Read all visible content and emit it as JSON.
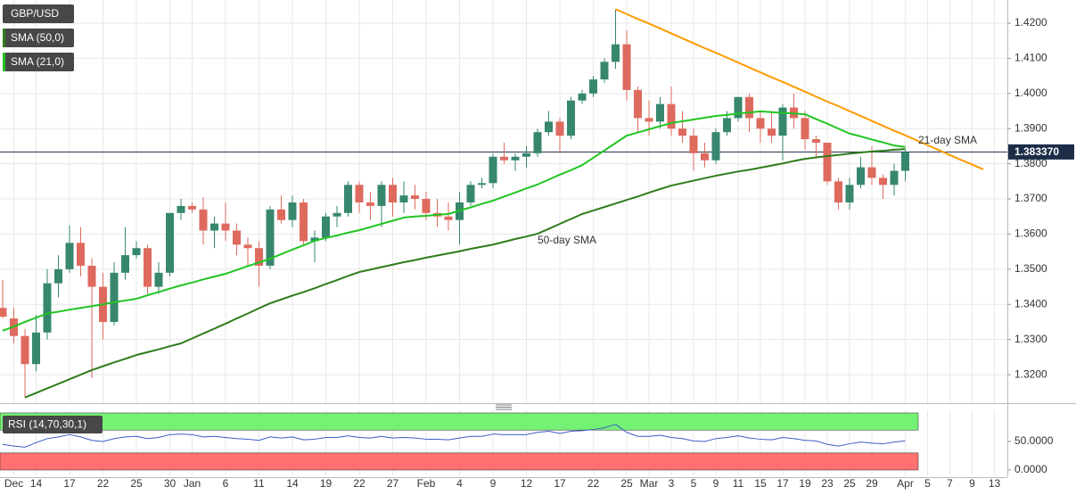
{
  "chart_data": [
    {
      "type": "candlestick",
      "categories": [
        null,
        "Dec",
        null,
        "14",
        null,
        null,
        "17",
        null,
        null,
        "22",
        null,
        null,
        "25",
        null,
        null,
        "30",
        null,
        "Jan",
        null,
        null,
        "6",
        null,
        null,
        "11",
        null,
        null,
        "14",
        null,
        null,
        "19",
        null,
        null,
        "22",
        null,
        null,
        "27",
        null,
        null,
        "Feb",
        null,
        null,
        "4",
        null,
        null,
        "9",
        null,
        null,
        "12",
        null,
        null,
        "17",
        null,
        null,
        "22",
        null,
        null,
        "25",
        null,
        "Mar",
        null,
        "3",
        null,
        "5",
        null,
        "9",
        null,
        "11",
        null,
        "15",
        null,
        "17",
        null,
        "19",
        null,
        "23",
        null,
        "25",
        null,
        "29",
        null,
        null,
        "Apr",
        null,
        "5",
        null,
        "7",
        null,
        "9",
        null,
        "13"
      ],
      "series": [
        {
          "name": "GBP/USD",
          "up_color": "#37876f",
          "down_color": "#de6a5e",
          "open": [
            1.339,
            1.336,
            1.331,
            1.323,
            1.332,
            1.346,
            1.35,
            1.3575,
            1.351,
            1.345,
            1.335,
            1.349,
            1.354,
            1.356,
            1.345,
            1.349,
            1.366,
            1.368,
            1.367,
            1.361,
            1.363,
            1.361,
            1.357,
            1.356,
            1.351,
            1.367,
            1.364,
            1.369,
            1.358,
            1.359,
            1.365,
            1.366,
            1.374,
            1.369,
            1.368,
            1.374,
            1.369,
            1.371,
            1.37,
            1.366,
            1.365,
            1.364,
            1.369,
            1.374,
            1.3745,
            1.382,
            1.381,
            1.382,
            1.383,
            1.389,
            1.392,
            1.388,
            1.398,
            1.4,
            1.404,
            1.409,
            1.414,
            1.401,
            1.393,
            1.392,
            1.397,
            1.39,
            1.388,
            1.383,
            1.381,
            1.389,
            1.393,
            1.399,
            1.393,
            1.39,
            1.388,
            1.396,
            1.393,
            1.387,
            1.386,
            1.375,
            1.369,
            1.374,
            1.379,
            1.376,
            1.374,
            1.378,
            null,
            null,
            null,
            null,
            null,
            null,
            null,
            null
          ],
          "high": [
            1.347,
            1.339,
            1.333,
            1.337,
            1.35,
            1.354,
            1.3625,
            1.362,
            1.353,
            1.349,
            1.352,
            1.362,
            1.358,
            1.357,
            1.352,
            1.366,
            1.37,
            1.369,
            1.3705,
            1.365,
            1.369,
            1.363,
            1.359,
            1.358,
            1.368,
            1.371,
            1.371,
            1.37,
            1.361,
            1.366,
            1.368,
            1.375,
            1.375,
            1.372,
            1.375,
            1.376,
            1.375,
            1.374,
            1.372,
            1.37,
            1.369,
            1.372,
            1.375,
            1.376,
            1.383,
            1.386,
            1.383,
            1.385,
            1.39,
            1.395,
            1.393,
            1.399,
            1.401,
            1.405,
            1.41,
            1.424,
            1.418,
            1.402,
            1.398,
            1.399,
            1.402,
            1.395,
            1.39,
            1.386,
            1.39,
            1.395,
            1.399,
            1.4,
            1.395,
            1.395,
            1.397,
            1.4,
            1.395,
            1.388,
            1.386,
            1.376,
            1.376,
            1.382,
            1.385,
            1.377,
            1.38,
            1.384,
            null,
            null,
            null,
            null,
            null,
            null,
            null,
            null
          ],
          "low": [
            1.336,
            1.329,
            1.3135,
            1.321,
            1.33,
            1.342,
            1.349,
            1.348,
            1.319,
            1.33,
            1.334,
            1.347,
            1.353,
            1.343,
            1.343,
            1.348,
            1.364,
            1.366,
            1.357,
            1.356,
            1.358,
            1.354,
            1.351,
            1.345,
            1.35,
            1.363,
            1.362,
            1.357,
            1.352,
            1.358,
            1.362,
            1.365,
            1.366,
            1.364,
            1.362,
            1.365,
            1.366,
            1.367,
            1.364,
            1.362,
            1.361,
            1.357,
            1.368,
            1.373,
            1.373,
            1.38,
            1.378,
            1.379,
            1.382,
            1.388,
            1.383,
            1.387,
            1.397,
            1.399,
            1.403,
            1.407,
            1.398,
            1.389,
            1.388,
            1.39,
            1.388,
            1.386,
            1.378,
            1.379,
            1.38,
            1.388,
            1.392,
            1.389,
            1.386,
            1.386,
            1.381,
            1.39,
            1.384,
            1.382,
            1.374,
            1.367,
            1.367,
            1.373,
            1.374,
            1.37,
            1.371,
            1.375,
            null,
            null,
            null,
            null,
            null,
            null,
            null,
            null
          ],
          "close": [
            1.3365,
            1.331,
            1.323,
            1.332,
            1.346,
            1.35,
            1.3575,
            1.351,
            1.345,
            1.335,
            1.349,
            1.354,
            1.356,
            1.345,
            1.349,
            1.366,
            1.368,
            1.367,
            1.361,
            1.363,
            1.361,
            1.357,
            1.356,
            1.351,
            1.367,
            1.364,
            1.369,
            1.358,
            1.359,
            1.365,
            1.366,
            1.374,
            1.369,
            1.368,
            1.374,
            1.369,
            1.371,
            1.37,
            1.366,
            1.365,
            1.364,
            1.369,
            1.374,
            1.3745,
            1.382,
            1.381,
            1.382,
            1.383,
            1.389,
            1.392,
            1.388,
            1.398,
            1.4,
            1.404,
            1.409,
            1.414,
            1.401,
            1.393,
            1.392,
            1.397,
            1.39,
            1.388,
            1.383,
            1.381,
            1.389,
            1.393,
            1.399,
            1.393,
            1.39,
            1.388,
            1.396,
            1.393,
            1.387,
            1.386,
            1.375,
            1.369,
            1.374,
            1.379,
            1.376,
            1.374,
            1.378,
            1.3833,
            null,
            null,
            null,
            null,
            null,
            null,
            null,
            null
          ]
        },
        {
          "name": "SMA (50,0)",
          "color": "#2f7d1c",
          "values": [
            null,
            null,
            1.3135,
            1.3148,
            1.3161,
            1.3174,
            1.3187,
            1.32,
            1.3213,
            1.3224,
            1.3235,
            1.3245,
            1.3256,
            1.3264,
            1.3272,
            1.3281,
            1.3289,
            1.3303,
            1.3317,
            1.3331,
            1.3345,
            1.336,
            1.3374,
            1.3389,
            1.3403,
            1.3414,
            1.3425,
            1.3435,
            1.3446,
            1.3458,
            1.3469,
            1.3481,
            1.3492,
            1.3499,
            1.3506,
            1.3513,
            1.352,
            1.3526,
            1.3533,
            1.3539,
            1.3545,
            1.3551,
            1.3558,
            1.3564,
            1.357,
            1.3578,
            1.3586,
            1.3593,
            1.3601,
            1.3615,
            1.3629,
            1.3643,
            1.3657,
            1.3667,
            1.3677,
            1.3687,
            1.3697,
            1.3707,
            1.3718,
            1.3728,
            1.3738,
            1.3745,
            1.3752,
            1.3759,
            1.3766,
            1.3772,
            1.3778,
            1.3783,
            1.3789,
            1.3795,
            1.3801,
            1.3808,
            1.3814,
            1.3818,
            1.3822,
            1.3825,
            1.3829,
            1.3832,
            1.3835,
            1.3837,
            1.384,
            1.3842,
            null,
            null,
            null,
            null,
            null,
            null,
            null,
            null
          ]
        },
        {
          "name": "SMA (21,0)",
          "color": "#21c521",
          "values": [
            1.3325,
            1.3337,
            1.335,
            1.3362,
            1.3374,
            1.3379,
            1.3385,
            1.339,
            1.3395,
            1.34,
            1.3406,
            1.3411,
            1.3416,
            1.3426,
            1.3435,
            1.3445,
            1.3454,
            1.3462,
            1.3471,
            1.3479,
            1.3487,
            1.3498,
            1.3509,
            1.3519,
            1.353,
            1.3543,
            1.3556,
            1.3568,
            1.3581,
            1.3589,
            1.3596,
            1.3604,
            1.3611,
            1.362,
            1.3629,
            1.3638,
            1.3647,
            1.365,
            1.3652,
            1.3655,
            1.3657,
            1.3667,
            1.3676,
            1.3686,
            1.3695,
            1.3707,
            1.3718,
            1.373,
            1.3741,
            1.3755,
            1.3769,
            1.3782,
            1.3796,
            1.3817,
            1.3838,
            1.3859,
            1.388,
            1.3889,
            1.3898,
            1.3907,
            1.3916,
            1.3921,
            1.3926,
            1.3931,
            1.3936,
            1.3939,
            1.3943,
            1.3946,
            1.3949,
            1.3947,
            1.3945,
            1.3943,
            1.3941,
            1.3927,
            1.3914,
            1.39,
            1.3886,
            1.3878,
            1.3869,
            1.3861,
            1.3852,
            1.3848,
            null,
            null,
            null,
            null,
            null,
            null,
            null,
            null
          ]
        }
      ],
      "trendline": {
        "color": "#ff9a00",
        "values": [
          null,
          null,
          null,
          null,
          null,
          null,
          null,
          null,
          null,
          null,
          null,
          null,
          null,
          null,
          null,
          null,
          null,
          null,
          null,
          null,
          null,
          null,
          null,
          null,
          null,
          null,
          null,
          null,
          null,
          null,
          null,
          null,
          null,
          null,
          null,
          null,
          null,
          null,
          null,
          null,
          null,
          null,
          null,
          null,
          null,
          null,
          null,
          null,
          null,
          null,
          null,
          null,
          null,
          null,
          null,
          1.424,
          1.4226,
          1.4212,
          1.4199,
          1.4185,
          1.4171,
          1.4157,
          1.4143,
          1.4129,
          1.4116,
          1.4102,
          1.4088,
          1.4074,
          1.406,
          1.4046,
          1.4033,
          1.4019,
          1.4005,
          1.3991,
          1.3977,
          1.3964,
          1.395,
          1.3936,
          1.3922,
          1.3908,
          1.3894,
          1.3881,
          1.3867,
          1.3853,
          1.3839,
          1.3825,
          1.3811,
          1.3798,
          1.3784,
          null
        ]
      },
      "last_price": {
        "value": 1.38337,
        "label": "1.383370",
        "color": "#1c2d48"
      },
      "annotations": [
        {
          "text": "21-day SMA",
          "color": "#2cb52c"
        },
        {
          "text": "50-day SMA",
          "color": "#2f7d1c"
        }
      ],
      "ylim": [
        1.3119,
        1.4266
      ],
      "yticks": [
        {
          "value": 1.32,
          "label": "1.3200"
        },
        {
          "value": 1.33,
          "label": "1.3300"
        },
        {
          "value": 1.34,
          "label": "1.3400"
        },
        {
          "value": 1.35,
          "label": "1.3500"
        },
        {
          "value": 1.36,
          "label": "1.3600"
        },
        {
          "value": 1.37,
          "label": "1.3700"
        },
        {
          "value": 1.38,
          "label": "1.3800"
        },
        {
          "value": 1.39,
          "label": "1.3900"
        },
        {
          "value": 1.4,
          "label": "1.4000"
        },
        {
          "value": 1.41,
          "label": "1.4100"
        },
        {
          "value": 1.42,
          "label": "1.4200"
        }
      ],
      "grid": true
    },
    {
      "type": "line",
      "title": "RSI (14,70,30,1)",
      "color": "#3c5ec8",
      "values": [
        45,
        42,
        40,
        48,
        55,
        58,
        62,
        58,
        52,
        50,
        55,
        58,
        59,
        55,
        57,
        62,
        63,
        62,
        58,
        59,
        57,
        55,
        54,
        52,
        58,
        56,
        58,
        53,
        54,
        57,
        57,
        60,
        57,
        56,
        59,
        56,
        57,
        56,
        54,
        54,
        53,
        56,
        59,
        59,
        63,
        62,
        62,
        62,
        66,
        68,
        64,
        68,
        69,
        71,
        74,
        80,
        66,
        59,
        59,
        61,
        57,
        55,
        51,
        50,
        55,
        57,
        60,
        56,
        54,
        53,
        57,
        55,
        52,
        51,
        45,
        42,
        46,
        49,
        47,
        46,
        49,
        51,
        null,
        null,
        null,
        null,
        null,
        null,
        null,
        null
      ],
      "upper": 70,
      "lower": 30,
      "upper_color": "#74f274",
      "lower_color": "#ff7070",
      "ylim": [
        0,
        100
      ],
      "yticks": [
        {
          "value": 50,
          "label": "50.0000"
        },
        {
          "value": 0,
          "label": "0.0000"
        }
      ]
    }
  ]
}
